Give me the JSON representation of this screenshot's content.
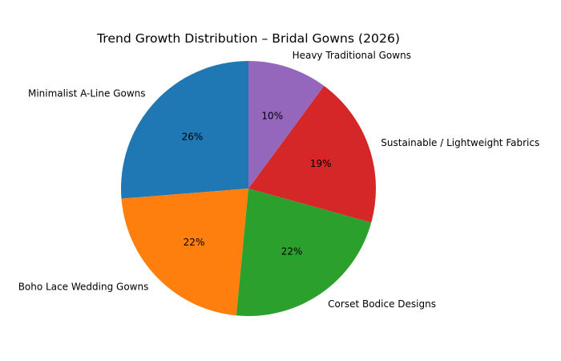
{
  "chart_data": {
    "type": "pie",
    "title": "Trend Growth Distribution – Bridal Gowns (2026)",
    "start_angle": 90,
    "direction": "counterclockwise",
    "slices": [
      {
        "label": "Minimalist A-Line Gowns",
        "value": 26,
        "pct_label": "26%",
        "color": "#1f77b4"
      },
      {
        "label": "Boho Lace Wedding Gowns",
        "value": 22,
        "pct_label": "22%",
        "color": "#ff7f0e"
      },
      {
        "label": "Corset Bodice Designs",
        "value": 22,
        "pct_label": "22%",
        "color": "#2ca02c"
      },
      {
        "label": "Sustainable / Lightweight Fabrics",
        "value": 19,
        "pct_label": "19%",
        "color": "#d62728"
      },
      {
        "label": "Heavy Traditional Gowns",
        "value": 10,
        "pct_label": "10%",
        "color": "#9467bd"
      }
    ]
  }
}
